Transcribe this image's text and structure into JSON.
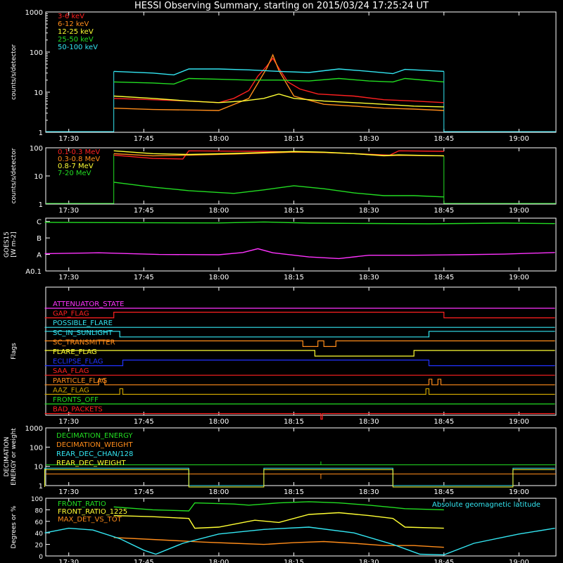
{
  "title": "HESSI Observing Summary, starting on 2015/03/24 17:25:24 UT",
  "time_ticks": [
    "17:30",
    "17:45",
    "18:00",
    "18:15",
    "18:30",
    "18:45",
    "19:00"
  ],
  "colors": {
    "background": "#000000",
    "axes": "#ffffff",
    "red": "#ff2020",
    "orange": "#ff8c1a",
    "yellow": "#ffff33",
    "green": "#22dd22",
    "cyan": "#33e6f2",
    "magenta": "#ff33ff",
    "blue": "#2233ff"
  },
  "chart_data": [
    {
      "type": "line",
      "panel": "hxr",
      "ylabel": "counts/s/detector",
      "yscale": "log",
      "ylim": [
        1,
        1000
      ],
      "ytick_labels": [
        "1",
        "10",
        "100",
        "1000"
      ],
      "series": [
        {
          "name": "3-6 keV",
          "color": "#ff2020",
          "points": [
            [
              17.65,
              7
            ],
            [
              17.78,
              6.5
            ],
            [
              17.9,
              6
            ],
            [
              18.0,
              5.5
            ],
            [
              18.05,
              7
            ],
            [
              18.1,
              11
            ],
            [
              18.13,
              25
            ],
            [
              18.16,
              45
            ],
            [
              18.18,
              70
            ],
            [
              18.2,
              40
            ],
            [
              18.23,
              18
            ],
            [
              18.27,
              12
            ],
            [
              18.33,
              9
            ],
            [
              18.45,
              8
            ],
            [
              18.55,
              6.5
            ],
            [
              18.65,
              6
            ],
            [
              18.75,
              5.5
            ]
          ]
        },
        {
          "name": "6-12 keV",
          "color": "#ff8c1a",
          "points": [
            [
              17.65,
              4
            ],
            [
              17.78,
              3.7
            ],
            [
              17.9,
              3.6
            ],
            [
              18.0,
              3.5
            ],
            [
              18.1,
              7
            ],
            [
              18.16,
              40
            ],
            [
              18.18,
              85
            ],
            [
              18.2,
              35
            ],
            [
              18.25,
              8
            ],
            [
              18.35,
              5
            ],
            [
              18.45,
              4.5
            ],
            [
              18.55,
              4
            ],
            [
              18.65,
              3.8
            ],
            [
              18.75,
              3.5
            ]
          ]
        },
        {
          "name": "12-25 keV",
          "color": "#ffff33",
          "points": [
            [
              17.65,
              8
            ],
            [
              17.78,
              7
            ],
            [
              17.9,
              6
            ],
            [
              18.0,
              5.5
            ],
            [
              18.08,
              6
            ],
            [
              18.15,
              7
            ],
            [
              18.2,
              9
            ],
            [
              18.25,
              7
            ],
            [
              18.35,
              6
            ],
            [
              18.45,
              5.5
            ],
            [
              18.55,
              5
            ],
            [
              18.65,
              4.5
            ],
            [
              18.75,
              4.3
            ]
          ]
        },
        {
          "name": "25-50 keV",
          "color": "#22dd22",
          "points": [
            [
              17.65,
              18
            ],
            [
              17.78,
              17
            ],
            [
              17.85,
              16
            ],
            [
              17.9,
              22
            ],
            [
              18.0,
              21
            ],
            [
              18.1,
              20
            ],
            [
              18.2,
              20
            ],
            [
              18.3,
              19
            ],
            [
              18.4,
              22
            ],
            [
              18.5,
              19
            ],
            [
              18.58,
              18
            ],
            [
              18.62,
              22
            ],
            [
              18.75,
              18
            ]
          ]
        },
        {
          "name": "50-100 keV",
          "color": "#33e6f2",
          "points": [
            [
              17.65,
              33
            ],
            [
              17.78,
              30
            ],
            [
              17.85,
              27
            ],
            [
              17.9,
              38
            ],
            [
              18.0,
              38
            ],
            [
              18.1,
              36
            ],
            [
              18.2,
              33
            ],
            [
              18.3,
              31
            ],
            [
              18.4,
              38
            ],
            [
              18.5,
              33
            ],
            [
              18.58,
              29
            ],
            [
              18.62,
              37
            ],
            [
              18.75,
              33
            ]
          ]
        }
      ]
    },
    {
      "type": "line",
      "panel": "gamma",
      "ylabel": "counts/s/detector",
      "yscale": "log",
      "ylim": [
        1,
        100
      ],
      "ytick_labels": [
        "1",
        "10",
        "100"
      ],
      "series": [
        {
          "name": "0.1-0.3 MeV",
          "color": "#ff2020",
          "points": [
            [
              17.65,
              55
            ],
            [
              17.78,
              42
            ],
            [
              17.88,
              40
            ],
            [
              17.9,
              78
            ],
            [
              18.05,
              76
            ],
            [
              18.15,
              75
            ],
            [
              18.22,
              72
            ],
            [
              18.35,
              68
            ],
            [
              18.45,
              62
            ],
            [
              18.57,
              55
            ],
            [
              18.6,
              78
            ],
            [
              18.75,
              75
            ]
          ]
        },
        {
          "name": "0.3-0.8 MeV",
          "color": "#ff8c1a",
          "points": [
            [
              17.65,
              62
            ],
            [
              17.78,
              52
            ],
            [
              17.9,
              55
            ],
            [
              18.05,
              60
            ],
            [
              18.15,
              65
            ],
            [
              18.25,
              70
            ],
            [
              18.35,
              68
            ],
            [
              18.45,
              62
            ],
            [
              18.55,
              52
            ],
            [
              18.6,
              54
            ],
            [
              18.75,
              52
            ]
          ]
        },
        {
          "name": "0.8-7 MeV",
          "color": "#ffff33",
          "points": [
            [
              17.65,
              78
            ],
            [
              17.78,
              62
            ],
            [
              17.9,
              58
            ],
            [
              18.05,
              63
            ],
            [
              18.15,
              68
            ],
            [
              18.25,
              74
            ],
            [
              18.35,
              70
            ],
            [
              18.45,
              62
            ],
            [
              18.55,
              53
            ],
            [
              18.6,
              56
            ],
            [
              18.75,
              52
            ]
          ]
        },
        {
          "name": "7-20 MeV",
          "color": "#22dd22",
          "points": [
            [
              17.65,
              6
            ],
            [
              17.78,
              4
            ],
            [
              17.9,
              3
            ],
            [
              18.05,
              2.4
            ],
            [
              18.15,
              3.2
            ],
            [
              18.25,
              4.5
            ],
            [
              18.35,
              3.5
            ],
            [
              18.45,
              2.5
            ],
            [
              18.55,
              2
            ],
            [
              18.65,
              2
            ],
            [
              18.75,
              1.8
            ]
          ]
        }
      ]
    },
    {
      "type": "line",
      "panel": "goes",
      "ylabel": "GOES15 [W m-2]",
      "ytick_labels": [
        "A0.1",
        "A",
        "B",
        "C"
      ],
      "ylim": [
        0,
        3.2
      ],
      "series": [
        {
          "color": "#22dd22",
          "points": [
            [
              17.42,
              2.95
            ],
            [
              17.8,
              2.92
            ],
            [
              18.0,
              2.91
            ],
            [
              18.15,
              2.97
            ],
            [
              18.3,
              2.9
            ],
            [
              18.5,
              2.88
            ],
            [
              18.7,
              2.86
            ],
            [
              18.95,
              2.9
            ],
            [
              19.12,
              2.87
            ]
          ]
        },
        {
          "color": "#ff33ff",
          "points": [
            [
              17.42,
              1.05
            ],
            [
              17.6,
              1.1
            ],
            [
              17.8,
              1.0
            ],
            [
              18.0,
              0.98
            ],
            [
              18.08,
              1.12
            ],
            [
              18.13,
              1.35
            ],
            [
              18.18,
              1.1
            ],
            [
              18.3,
              0.85
            ],
            [
              18.4,
              0.75
            ],
            [
              18.5,
              0.95
            ],
            [
              18.65,
              0.95
            ],
            [
              18.8,
              0.98
            ],
            [
              18.95,
              1.02
            ],
            [
              19.12,
              1.12
            ]
          ]
        }
      ]
    },
    {
      "type": "line",
      "panel": "flags",
      "ylabel": "Flags",
      "series": [
        {
          "name": "ATTENUATOR_STATE",
          "color": "#ff33ff"
        },
        {
          "name": "GAP_FLAG",
          "color": "#ff2020"
        },
        {
          "name": "POSSIBLE_FLARE",
          "color": "#33e6f2"
        },
        {
          "name": "SC_IN_SUNLIGHT",
          "color": "#33e6f2"
        },
        {
          "name": "SC_TRANSMITTER",
          "color": "#ff8c1a"
        },
        {
          "name": "FLARE_FLAG",
          "color": "#ffff33"
        },
        {
          "name": "ECLIPSE_FLAG",
          "color": "#2233ff"
        },
        {
          "name": "SAA_FLAG",
          "color": "#ff2020"
        },
        {
          "name": "PARTICLE_FLAG",
          "color": "#ff8c1a"
        },
        {
          "name": "AAZ_FLAG",
          "color": "#c8a000"
        },
        {
          "name": "FRONTS_OFF",
          "color": "#22dd22"
        },
        {
          "name": "BAD_PACKETS",
          "color": "#ff2020"
        }
      ]
    },
    {
      "type": "line",
      "panel": "decimation",
      "ylabel": "DECIMATION ENERGY or weight",
      "yscale": "log",
      "ylim": [
        1,
        1000
      ],
      "ytick_labels": [
        "1",
        "10",
        "100",
        "1000"
      ],
      "series": [
        {
          "name": "DECIMATION_ENERGY",
          "color": "#22dd22"
        },
        {
          "name": "DECIMATION_WEIGHT",
          "color": "#ff8c1a"
        },
        {
          "name": "REAR_DEC_CHAN/128",
          "color": "#33e6f2"
        },
        {
          "name": "REAR_DEC_WEIGHT",
          "color": "#ffff33"
        }
      ]
    },
    {
      "type": "line",
      "panel": "ratios",
      "ylabel": "Degrees or %",
      "ylim": [
        0,
        100
      ],
      "ytick_labels": [
        "0",
        "20",
        "40",
        "60",
        "80",
        "100"
      ],
      "annotation": "Absolute geomagnetic latitude",
      "series": [
        {
          "name": "FRONT_RATIO",
          "color": "#22dd22",
          "points": [
            [
              17.65,
              85
            ],
            [
              17.78,
              80
            ],
            [
              17.9,
              78
            ],
            [
              17.92,
              92
            ],
            [
              18.05,
              90
            ],
            [
              18.1,
              88
            ],
            [
              18.2,
              92
            ],
            [
              18.3,
              94
            ],
            [
              18.4,
              92
            ],
            [
              18.5,
              88
            ],
            [
              18.58,
              84
            ],
            [
              18.62,
              82
            ],
            [
              18.75,
              80
            ]
          ]
        },
        {
          "name": "FRONT_RATIO_1225",
          "color": "#ffff33",
          "points": [
            [
              17.65,
              70
            ],
            [
              17.78,
              68
            ],
            [
              17.9,
              65
            ],
            [
              17.92,
              48
            ],
            [
              18.0,
              50
            ],
            [
              18.05,
              55
            ],
            [
              18.12,
              62
            ],
            [
              18.2,
              58
            ],
            [
              18.3,
              72
            ],
            [
              18.4,
              75
            ],
            [
              18.5,
              70
            ],
            [
              18.58,
              65
            ],
            [
              18.62,
              50
            ],
            [
              18.75,
              48
            ]
          ]
        },
        {
          "name": "MAX_DET_VS_TOT",
          "color": "#ff8c1a",
          "points": [
            [
              17.65,
              32
            ],
            [
              17.8,
              28
            ],
            [
              17.95,
              24
            ],
            [
              18.05,
              22
            ],
            [
              18.15,
              20
            ],
            [
              18.25,
              23
            ],
            [
              18.35,
              25
            ],
            [
              18.45,
              22
            ],
            [
              18.55,
              18
            ],
            [
              18.65,
              18
            ],
            [
              18.75,
              15
            ]
          ]
        },
        {
          "color": "#33e6f2",
          "points": [
            [
              17.42,
              40
            ],
            [
              17.5,
              48
            ],
            [
              17.58,
              45
            ],
            [
              17.67,
              30
            ],
            [
              17.75,
              10
            ],
            [
              17.79,
              3
            ],
            [
              17.88,
              22
            ],
            [
              18.0,
              38
            ],
            [
              18.15,
              46
            ],
            [
              18.3,
              50
            ],
            [
              18.45,
              40
            ],
            [
              18.58,
              20
            ],
            [
              18.67,
              3
            ],
            [
              18.75,
              2
            ],
            [
              18.85,
              22
            ],
            [
              19.0,
              38
            ],
            [
              19.12,
              48
            ]
          ]
        }
      ]
    }
  ]
}
